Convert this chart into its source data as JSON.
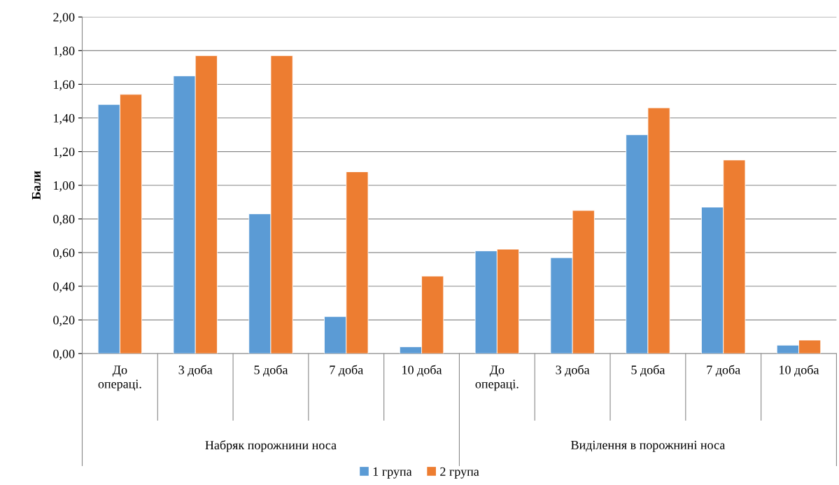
{
  "chart_data": {
    "type": "bar",
    "ylabel": "Бали",
    "categories": [
      "До\nопераці.",
      "3 доба",
      "5 доба",
      "7 доба",
      "10 доба",
      "До\nопераці.",
      "3 доба",
      "5 доба",
      "7 доба",
      "10 доба"
    ],
    "annotations": [
      "Набряк порожнини носа",
      "Виділення в порожнині носа"
    ],
    "series": [
      {
        "name": "1 група",
        "color": "#5b9bd5",
        "values": [
          1.48,
          1.65,
          0.83,
          0.22,
          0.04,
          0.61,
          0.57,
          1.3,
          0.87,
          0.05
        ]
      },
      {
        "name": "2 група",
        "color": "#ed7d31",
        "values": [
          1.54,
          1.77,
          1.77,
          1.08,
          0.46,
          0.62,
          0.85,
          1.46,
          1.15,
          0.08
        ]
      }
    ],
    "ylim": [
      0,
      2
    ],
    "yticks": [
      {
        "value": 0,
        "label": "0,00"
      },
      {
        "value": 0.2,
        "label": "0,20"
      },
      {
        "value": 0.4,
        "label": "0,40"
      },
      {
        "value": 0.6,
        "label": "0,60"
      },
      {
        "value": 0.8,
        "label": "0,80"
      },
      {
        "value": 1.0,
        "label": "1,00"
      },
      {
        "value": 1.2,
        "label": "1,20"
      },
      {
        "value": 1.4,
        "label": "1,40"
      },
      {
        "value": 1.6,
        "label": "1,60"
      },
      {
        "value": 1.8,
        "label": "1,80"
      },
      {
        "value": 2.0,
        "label": "2,00"
      }
    ],
    "grid": "y",
    "legend": "bottom"
  }
}
